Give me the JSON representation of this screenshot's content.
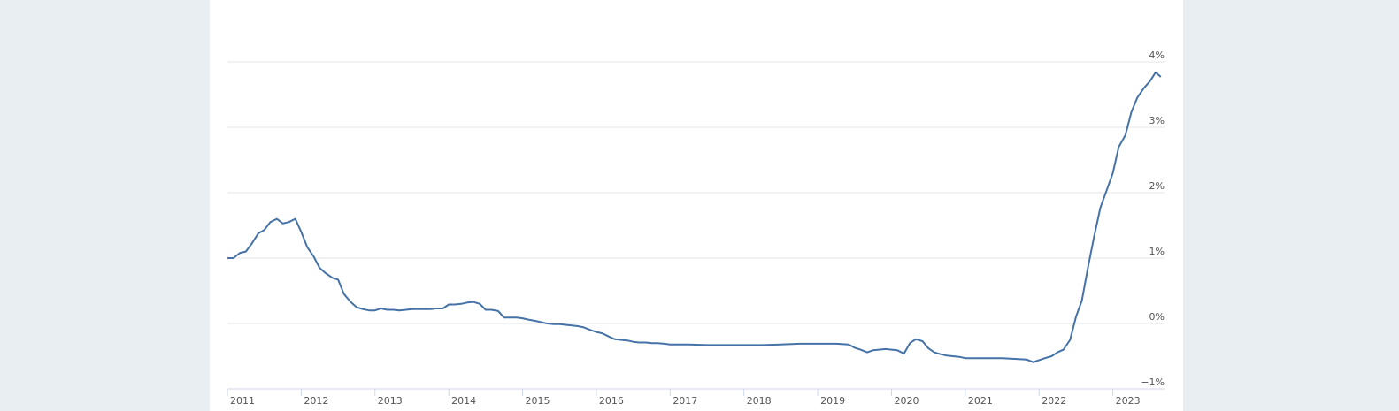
{
  "chart_data": {
    "type": "line",
    "x": [
      2011,
      2011.08,
      2011.17,
      2011.25,
      2011.33,
      2011.42,
      2011.5,
      2011.58,
      2011.67,
      2011.75,
      2011.83,
      2011.92,
      2012,
      2012.08,
      2012.17,
      2012.25,
      2012.33,
      2012.42,
      2012.5,
      2012.58,
      2012.67,
      2012.75,
      2012.83,
      2012.92,
      2013,
      2013.08,
      2013.17,
      2013.25,
      2013.33,
      2013.42,
      2013.5,
      2013.58,
      2013.67,
      2013.75,
      2013.83,
      2013.92,
      2014,
      2014.08,
      2014.17,
      2014.25,
      2014.33,
      2014.42,
      2014.5,
      2014.58,
      2014.67,
      2014.75,
      2014.83,
      2014.92,
      2015,
      2015.08,
      2015.17,
      2015.25,
      2015.33,
      2015.42,
      2015.5,
      2015.58,
      2015.67,
      2015.75,
      2015.83,
      2015.92,
      2016,
      2016.08,
      2016.17,
      2016.25,
      2016.33,
      2016.42,
      2016.5,
      2016.58,
      2016.67,
      2016.75,
      2016.83,
      2016.92,
      2017,
      2017.25,
      2017.5,
      2017.75,
      2018,
      2018.25,
      2018.5,
      2018.75,
      2019,
      2019.25,
      2019.42,
      2019.5,
      2019.58,
      2019.67,
      2019.75,
      2019.83,
      2019.92,
      2020,
      2020.08,
      2020.17,
      2020.25,
      2020.33,
      2020.42,
      2020.5,
      2020.58,
      2020.67,
      2020.75,
      2020.83,
      2020.92,
      2021,
      2021.17,
      2021.33,
      2021.5,
      2021.67,
      2021.83,
      2021.92,
      2022,
      2022.08,
      2022.17,
      2022.25,
      2022.33,
      2022.42,
      2022.5,
      2022.58,
      2022.67,
      2022.75,
      2022.83,
      2022.92,
      2023,
      2023.08,
      2023.17,
      2023.25,
      2023.33,
      2023.42,
      2023.5,
      2023.58,
      2023.65
    ],
    "series": [
      {
        "color": "#4572a7",
        "values": [
          1.0,
          1.0,
          1.08,
          1.1,
          1.22,
          1.38,
          1.43,
          1.55,
          1.6,
          1.53,
          1.55,
          1.6,
          1.4,
          1.17,
          1.02,
          0.85,
          0.77,
          0.7,
          0.67,
          0.45,
          0.33,
          0.25,
          0.22,
          0.2,
          0.2,
          0.23,
          0.21,
          0.21,
          0.2,
          0.21,
          0.22,
          0.22,
          0.22,
          0.22,
          0.23,
          0.23,
          0.29,
          0.29,
          0.3,
          0.32,
          0.33,
          0.3,
          0.21,
          0.21,
          0.19,
          0.09,
          0.09,
          0.09,
          0.08,
          0.06,
          0.04,
          0.02,
          0.0,
          -0.01,
          -0.01,
          -0.02,
          -0.03,
          -0.04,
          -0.06,
          -0.1,
          -0.13,
          -0.15,
          -0.2,
          -0.24,
          -0.25,
          -0.26,
          -0.28,
          -0.29,
          -0.29,
          -0.3,
          -0.3,
          -0.31,
          -0.32,
          -0.32,
          -0.33,
          -0.33,
          -0.33,
          -0.33,
          -0.32,
          -0.31,
          -0.31,
          -0.31,
          -0.32,
          -0.37,
          -0.4,
          -0.44,
          -0.41,
          -0.4,
          -0.39,
          -0.4,
          -0.41,
          -0.46,
          -0.3,
          -0.24,
          -0.27,
          -0.38,
          -0.44,
          -0.47,
          -0.49,
          -0.5,
          -0.51,
          -0.53,
          -0.53,
          -0.53,
          -0.53,
          -0.54,
          -0.55,
          -0.59,
          -0.56,
          -0.53,
          -0.5,
          -0.44,
          -0.4,
          -0.25,
          0.1,
          0.35,
          0.9,
          1.35,
          1.77,
          2.05,
          2.3,
          2.7,
          2.88,
          3.23,
          3.45,
          3.6,
          3.7,
          3.84,
          3.77
        ]
      }
    ],
    "xlim": [
      2011,
      2023.7
    ],
    "xticks": [
      2011,
      2012,
      2013,
      2014,
      2015,
      2016,
      2017,
      2018,
      2019,
      2020,
      2021,
      2022,
      2023
    ],
    "ylim": [
      -1,
      4
    ],
    "yticks": [
      {
        "value": -1,
        "label": "−1%"
      },
      {
        "value": 0,
        "label": "0%"
      },
      {
        "value": 1,
        "label": "1%"
      },
      {
        "value": 2,
        "label": "2%"
      },
      {
        "value": 3,
        "label": "3%"
      },
      {
        "value": 4,
        "label": "4%"
      }
    ],
    "grid": true
  }
}
